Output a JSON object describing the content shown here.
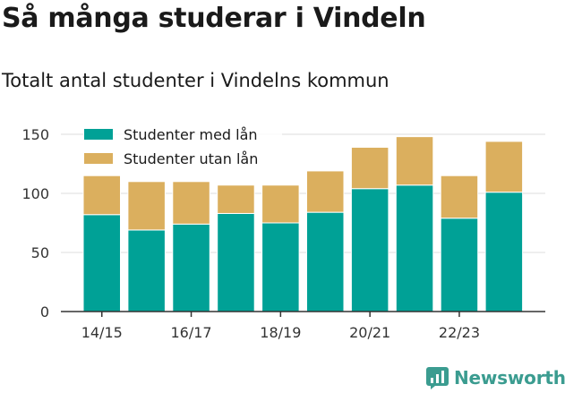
{
  "title": "Så många studerar i Vindeln",
  "subtitle": "Totalt antal studenter i Vindelns kommun",
  "brand": {
    "name": "Newsworthy",
    "icon": "newsworthy-logo-icon",
    "color": "#3b9c90"
  },
  "chart_data": {
    "type": "bar",
    "stacked": true,
    "categories": [
      "14/15",
      "15/16",
      "16/17",
      "17/18",
      "18/19",
      "19/20",
      "20/21",
      "21/22",
      "22/23",
      "23/24"
    ],
    "x_tick_labels": [
      "14/15",
      "16/17",
      "18/19",
      "20/21",
      "22/23"
    ],
    "series": [
      {
        "name": "Studenter med lån",
        "color": "#00a196",
        "values": [
          82,
          69,
          74,
          83,
          75,
          84,
          104,
          107,
          79,
          101
        ]
      },
      {
        "name": "Studenter utan lån",
        "color": "#dbaf5e",
        "values": [
          33,
          41,
          36,
          24,
          32,
          35,
          35,
          41,
          36,
          43
        ]
      }
    ],
    "yticks": [
      0,
      50,
      100,
      150
    ],
    "ylim": [
      0,
      150
    ],
    "grid": "horizontal",
    "legend_position": "top-left",
    "xlabel": "",
    "ylabel": ""
  }
}
